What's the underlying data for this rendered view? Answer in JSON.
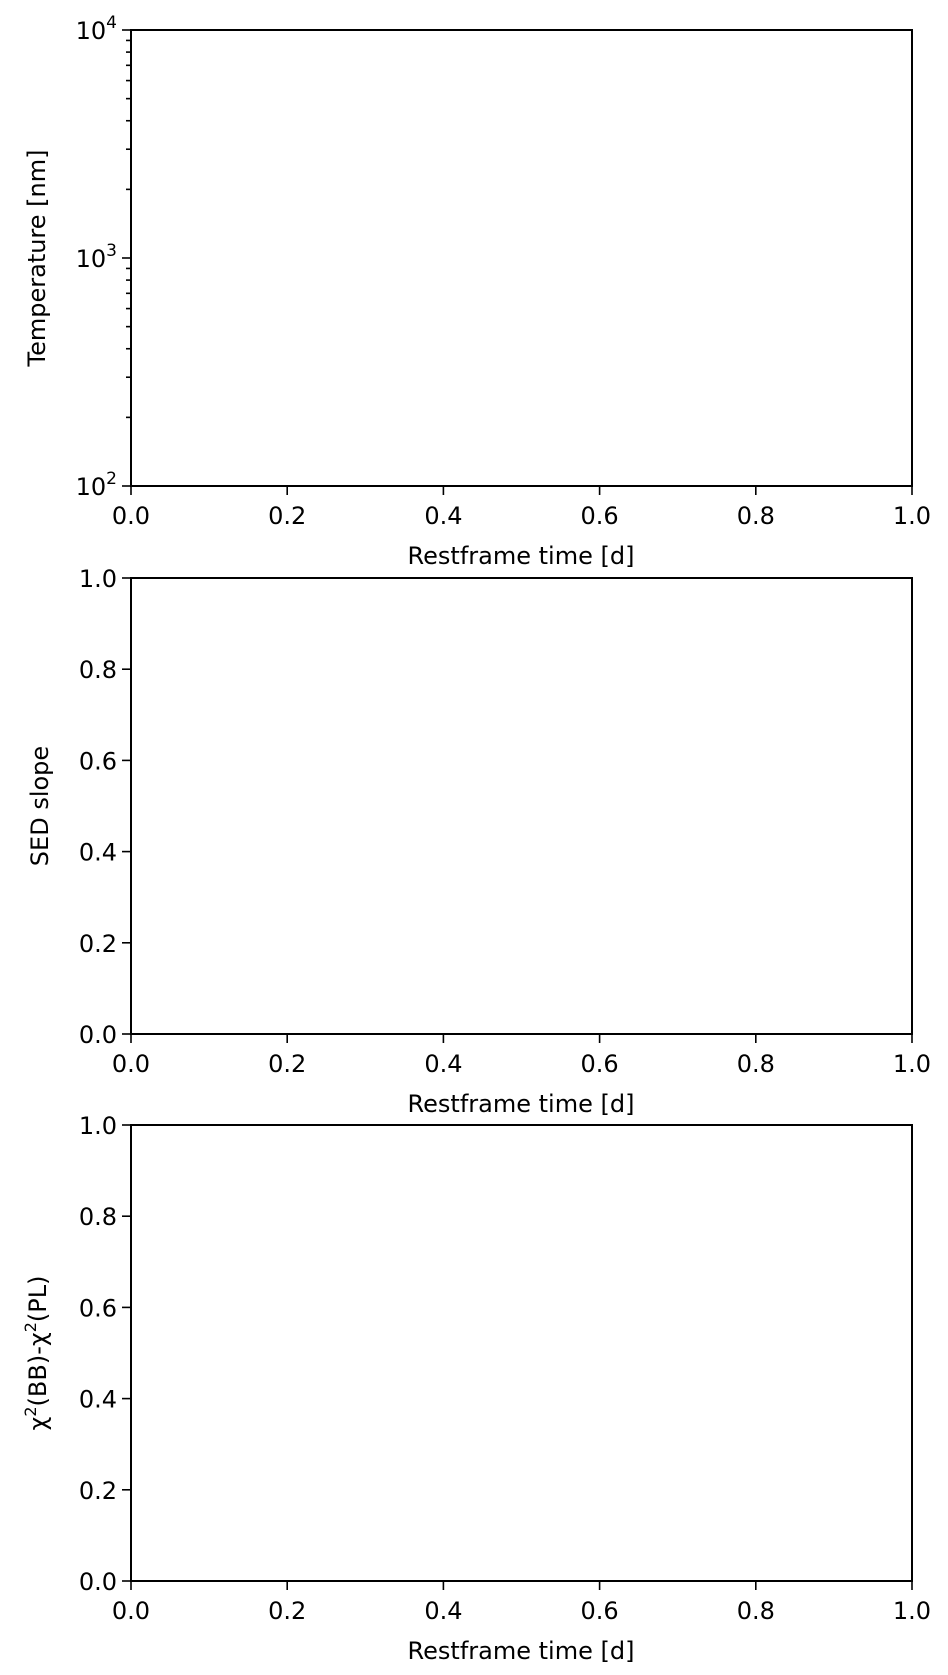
{
  "chart_data": [
    {
      "type": "line",
      "series": [],
      "xlabel": "Restframe time [d]",
      "ylabel": "Temperature [nm]",
      "xlim": [
        0.0,
        1.0
      ],
      "ylim": [
        100,
        10000
      ],
      "yscale": "log",
      "xticks": [
        "0.0",
        "0.2",
        "0.4",
        "0.6",
        "0.8",
        "1.0"
      ],
      "yticks": [
        {
          "base": "10",
          "exp": "2"
        },
        {
          "base": "10",
          "exp": "3"
        },
        {
          "base": "10",
          "exp": "4"
        }
      ],
      "grid": false
    },
    {
      "type": "line",
      "series": [],
      "xlabel": "Restframe time [d]",
      "ylabel": "SED slope",
      "xlim": [
        0.0,
        1.0
      ],
      "ylim": [
        0.0,
        1.0
      ],
      "xticks": [
        "0.0",
        "0.2",
        "0.4",
        "0.6",
        "0.8",
        "1.0"
      ],
      "yticks": [
        "0.0",
        "0.2",
        "0.4",
        "0.6",
        "0.8",
        "1.0"
      ],
      "grid": false
    },
    {
      "type": "line",
      "series": [],
      "xlabel": "Restframe time [d]",
      "ylabel": {
        "parts": [
          "χ",
          "2",
          "(BB)-χ",
          "2",
          "(PL)"
        ]
      },
      "xlim": [
        0.0,
        1.0
      ],
      "ylim": [
        0.0,
        1.0
      ],
      "xticks": [
        "0.0",
        "0.2",
        "0.4",
        "0.6",
        "0.8",
        "1.0"
      ],
      "yticks": [
        "0.0",
        "0.2",
        "0.4",
        "0.6",
        "0.8",
        "1.0"
      ],
      "grid": false
    }
  ]
}
